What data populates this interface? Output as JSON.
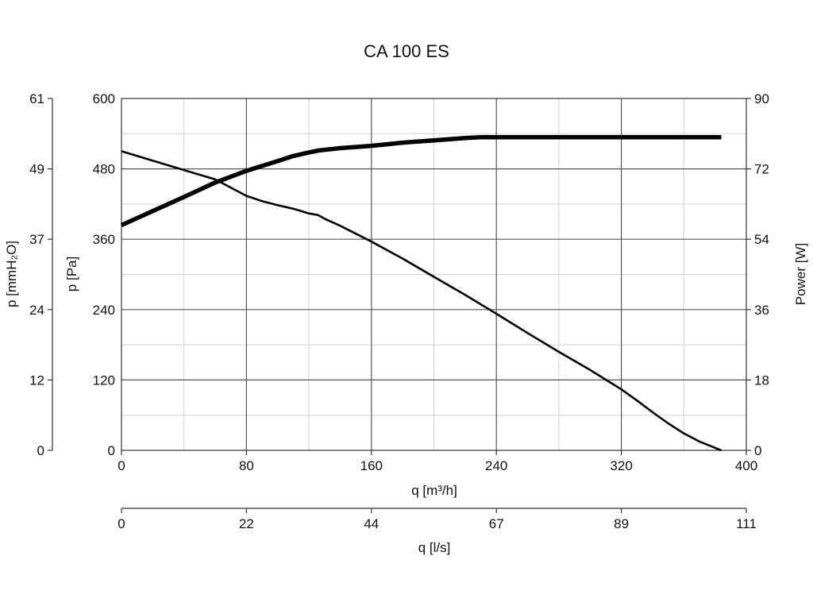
{
  "chart_data": {
    "type": "line",
    "title": "CA 100 ES",
    "xlabel": "q [m³/h]",
    "xlim": [
      0,
      400
    ],
    "x_ticks": [
      "0",
      "80",
      "160",
      "240",
      "320",
      "400"
    ],
    "x2label": "q [l/s]",
    "x2_ticks": [
      "0",
      "22",
      "44",
      "67",
      "89",
      "111"
    ],
    "ylabel": "p [Pa]",
    "ylim": [
      0,
      600
    ],
    "y_ticks": [
      "0",
      "120",
      "240",
      "360",
      "480",
      "600"
    ],
    "y_outer_label": "p [mmH₂O]",
    "y_outer_ticks": [
      "0",
      "12",
      "24",
      "37",
      "49",
      "61"
    ],
    "y2label": "Power [W]",
    "y2lim": [
      0,
      90
    ],
    "y2_ticks": [
      "0",
      "18",
      "36",
      "54",
      "72",
      "90"
    ],
    "grid": true,
    "series": [
      {
        "axis": "y",
        "style": "thin",
        "x": [
          0,
          20,
          40,
          60,
          80,
          90,
          100,
          110,
          120,
          126,
          130,
          140,
          160,
          180,
          200,
          220,
          240,
          260,
          280,
          300,
          320,
          330,
          340,
          350,
          360,
          370,
          384
        ],
        "y": [
          510,
          494,
          478,
          462,
          434,
          425,
          418,
          412,
          404,
          401,
          395,
          383,
          356,
          327,
          296,
          265,
          233,
          200,
          168,
          137,
          104,
          85,
          65,
          46,
          29,
          15,
          0
        ]
      },
      {
        "axis": "y2",
        "style": "thick",
        "x": [
          0,
          20,
          40,
          60,
          80,
          88,
          100,
          110,
          120,
          126,
          140,
          160,
          180,
          200,
          220,
          230,
          260,
          300,
          340,
          384
        ],
        "y": [
          57.6,
          61.2,
          64.8,
          68.5,
          71.5,
          72.5,
          74.0,
          75.3,
          76.2,
          76.7,
          77.3,
          77.9,
          78.7,
          79.3,
          79.9,
          80.1,
          80.1,
          80.1,
          80.1,
          80.1
        ]
      }
    ]
  }
}
